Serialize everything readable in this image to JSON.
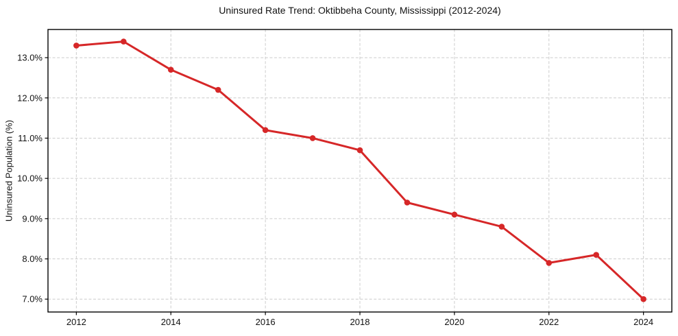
{
  "chart_data": {
    "type": "line",
    "title": "Uninsured Rate Trend: Oktibbeha County, Mississippi (2012-2024)",
    "xlabel": "",
    "ylabel": "Uninsured Population (%)",
    "x": [
      2012,
      2013,
      2014,
      2015,
      2016,
      2017,
      2018,
      2019,
      2020,
      2021,
      2022,
      2023,
      2024
    ],
    "values": [
      13.3,
      13.4,
      12.7,
      12.2,
      11.2,
      11.0,
      10.7,
      9.4,
      9.1,
      8.8,
      7.9,
      8.1,
      7.0
    ],
    "xticks": [
      2012,
      2014,
      2016,
      2018,
      2020,
      2022,
      2024
    ],
    "xtick_labels": [
      "2012",
      "2014",
      "2016",
      "2018",
      "2020",
      "2022",
      "2024"
    ],
    "yticks": [
      7,
      8,
      9,
      10,
      11,
      12,
      13
    ],
    "ytick_labels": [
      "7.0%",
      "8.0%",
      "9.0%",
      "10.0%",
      "11.0%",
      "12.0%",
      "13.0%"
    ],
    "xlim": [
      2011.4,
      2024.6
    ],
    "ylim": [
      6.68,
      13.7
    ],
    "grid": true,
    "grid_style": "dashed",
    "legend": "none",
    "line_color": "#d62728",
    "marker": "circle",
    "grid_color": "#cccccc",
    "axis_color": "#000000",
    "background": "#ffffff"
  }
}
